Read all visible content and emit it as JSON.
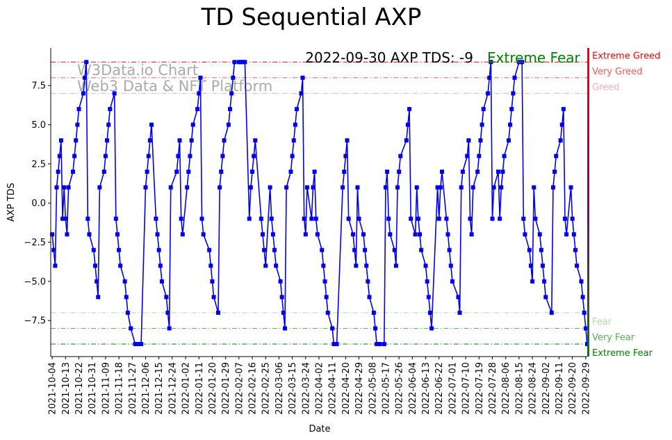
{
  "chart_data": {
    "type": "line",
    "title": "TD Sequential AXP",
    "xlabel": "Date",
    "ylabel": "AXP TDS",
    "ylim": [
      -9.8,
      9.9
    ],
    "xlim": [
      "2021-10-03",
      "2022-09-30"
    ],
    "yticks": [
      -7.5,
      -5.0,
      -2.5,
      0.0,
      2.5,
      5.0,
      7.5
    ],
    "ytick_labels": [
      "−7.5",
      "−5.0",
      "−2.5",
      "0.0",
      "2.5",
      "5.0",
      "7.5"
    ],
    "xticks": [
      "2021-10-04",
      "2021-10-13",
      "2021-10-22",
      "2021-10-31",
      "2021-11-09",
      "2021-11-18",
      "2021-11-27",
      "2021-12-06",
      "2021-12-15",
      "2021-12-24",
      "2022-01-02",
      "2022-01-11",
      "2022-01-20",
      "2022-01-29",
      "2022-02-07",
      "2022-02-16",
      "2022-02-25",
      "2022-03-06",
      "2022-03-15",
      "2022-03-24",
      "2022-04-02",
      "2022-04-11",
      "2022-04-20",
      "2022-04-29",
      "2022-05-08",
      "2022-05-17",
      "2022-05-26",
      "2022-06-04",
      "2022-06-13",
      "2022-06-22",
      "2022-07-01",
      "2022-07-10",
      "2022-07-19",
      "2022-07-28",
      "2022-08-06",
      "2022-08-15",
      "2022-08-24",
      "2022-09-02",
      "2022-09-11",
      "2022-09-20",
      "2022-09-29"
    ],
    "annotation": "2022-09-30 AXP TDS: -9",
    "annotation_status": "Extreme Fear",
    "watermark": [
      "W3Data.io Chart",
      "Web3 Data & NFT Platform"
    ],
    "grid": false,
    "line_color": "#0000ee",
    "reference_lines": [
      {
        "y": 9,
        "label": "Extreme Greed",
        "color": "#ff0000"
      },
      {
        "y": 8,
        "label": "Very Greed",
        "color": "#ff5555"
      },
      {
        "y": 7,
        "label": "Greed",
        "color": "#ffaaaa"
      },
      {
        "y": -7,
        "label": "Fear",
        "color": "#aaddaa"
      },
      {
        "y": -8,
        "label": "Very Fear",
        "color": "#55aa55"
      },
      {
        "y": -9,
        "label": "Extreme Fear",
        "color": "#008000"
      }
    ],
    "series": [
      {
        "values": [
          [
            "2021-10-04",
            -2
          ],
          [
            "2021-10-05",
            -3
          ],
          [
            "2021-10-06",
            -4
          ],
          [
            "2021-10-07",
            1
          ],
          [
            "2021-10-08",
            2
          ],
          [
            "2021-10-09",
            3
          ],
          [
            "2021-10-10",
            4
          ],
          [
            "2021-10-11",
            -1
          ],
          [
            "2021-10-12",
            1
          ],
          [
            "2021-10-13",
            -1
          ],
          [
            "2021-10-14",
            -2
          ],
          [
            "2021-10-15",
            1
          ],
          [
            "2021-10-18",
            2
          ],
          [
            "2021-10-19",
            3
          ],
          [
            "2021-10-20",
            4
          ],
          [
            "2021-10-21",
            5
          ],
          [
            "2021-10-22",
            6
          ],
          [
            "2021-10-25",
            7
          ],
          [
            "2021-10-26",
            8
          ],
          [
            "2021-10-27",
            9
          ],
          [
            "2021-10-28",
            -1
          ],
          [
            "2021-10-29",
            -2
          ],
          [
            "2021-11-01",
            -3
          ],
          [
            "2021-11-02",
            -4
          ],
          [
            "2021-11-03",
            -5
          ],
          [
            "2021-11-04",
            -6
          ],
          [
            "2021-11-05",
            1
          ],
          [
            "2021-11-08",
            2
          ],
          [
            "2021-11-09",
            3
          ],
          [
            "2021-11-10",
            4
          ],
          [
            "2021-11-11",
            5
          ],
          [
            "2021-11-12",
            6
          ],
          [
            "2021-11-15",
            7
          ],
          [
            "2021-11-16",
            -1
          ],
          [
            "2021-11-17",
            -2
          ],
          [
            "2021-11-18",
            -3
          ],
          [
            "2021-11-19",
            -4
          ],
          [
            "2021-11-22",
            -5
          ],
          [
            "2021-11-23",
            -6
          ],
          [
            "2021-11-24",
            -7
          ],
          [
            "2021-11-26",
            -8
          ],
          [
            "2021-11-29",
            -9
          ],
          [
            "2021-11-30",
            -9
          ],
          [
            "2021-12-01",
            -9
          ],
          [
            "2021-12-02",
            -9
          ],
          [
            "2021-12-03",
            -9
          ],
          [
            "2021-12-06",
            1
          ],
          [
            "2021-12-07",
            2
          ],
          [
            "2021-12-08",
            3
          ],
          [
            "2021-12-09",
            4
          ],
          [
            "2021-12-10",
            5
          ],
          [
            "2021-12-13",
            -1
          ],
          [
            "2021-12-14",
            -2
          ],
          [
            "2021-12-15",
            -3
          ],
          [
            "2021-12-16",
            -4
          ],
          [
            "2021-12-17",
            -5
          ],
          [
            "2021-12-20",
            -6
          ],
          [
            "2021-12-21",
            -7
          ],
          [
            "2021-12-22",
            -8
          ],
          [
            "2021-12-23",
            1
          ],
          [
            "2021-12-27",
            2
          ],
          [
            "2021-12-28",
            3
          ],
          [
            "2021-12-29",
            4
          ],
          [
            "2021-12-30",
            -1
          ],
          [
            "2021-12-31",
            -2
          ],
          [
            "2022-01-03",
            1
          ],
          [
            "2022-01-04",
            2
          ],
          [
            "2022-01-05",
            3
          ],
          [
            "2022-01-06",
            4
          ],
          [
            "2022-01-07",
            5
          ],
          [
            "2022-01-10",
            6
          ],
          [
            "2022-01-11",
            7
          ],
          [
            "2022-01-12",
            8
          ],
          [
            "2022-01-13",
            -1
          ],
          [
            "2022-01-14",
            -2
          ],
          [
            "2022-01-18",
            -3
          ],
          [
            "2022-01-19",
            -4
          ],
          [
            "2022-01-20",
            -5
          ],
          [
            "2022-01-21",
            -6
          ],
          [
            "2022-01-24",
            -7
          ],
          [
            "2022-01-25",
            1
          ],
          [
            "2022-01-26",
            2
          ],
          [
            "2022-01-27",
            3
          ],
          [
            "2022-01-28",
            4
          ],
          [
            "2022-01-31",
            5
          ],
          [
            "2022-02-01",
            6
          ],
          [
            "2022-02-02",
            7
          ],
          [
            "2022-02-03",
            8
          ],
          [
            "2022-02-04",
            9
          ],
          [
            "2022-02-07",
            9
          ],
          [
            "2022-02-08",
            9
          ],
          [
            "2022-02-09",
            9
          ],
          [
            "2022-02-10",
            9
          ],
          [
            "2022-02-11",
            9
          ],
          [
            "2022-02-14",
            -1
          ],
          [
            "2022-02-15",
            1
          ],
          [
            "2022-02-16",
            2
          ],
          [
            "2022-02-17",
            3
          ],
          [
            "2022-02-18",
            4
          ],
          [
            "2022-02-22",
            -1
          ],
          [
            "2022-02-23",
            -2
          ],
          [
            "2022-02-24",
            -3
          ],
          [
            "2022-02-25",
            -4
          ],
          [
            "2022-02-28",
            1
          ],
          [
            "2022-03-01",
            -1
          ],
          [
            "2022-03-02",
            -2
          ],
          [
            "2022-03-03",
            -3
          ],
          [
            "2022-03-04",
            -4
          ],
          [
            "2022-03-07",
            -5
          ],
          [
            "2022-03-08",
            -6
          ],
          [
            "2022-03-09",
            -7
          ],
          [
            "2022-03-10",
            -8
          ],
          [
            "2022-03-11",
            1
          ],
          [
            "2022-03-14",
            2
          ],
          [
            "2022-03-15",
            3
          ],
          [
            "2022-03-16",
            4
          ],
          [
            "2022-03-17",
            5
          ],
          [
            "2022-03-18",
            6
          ],
          [
            "2022-03-21",
            7
          ],
          [
            "2022-03-22",
            8
          ],
          [
            "2022-03-23",
            -1
          ],
          [
            "2022-03-24",
            -2
          ],
          [
            "2022-03-25",
            1
          ],
          [
            "2022-03-28",
            -1
          ],
          [
            "2022-03-29",
            1
          ],
          [
            "2022-03-30",
            2
          ],
          [
            "2022-03-31",
            -1
          ],
          [
            "2022-04-01",
            -2
          ],
          [
            "2022-04-04",
            -3
          ],
          [
            "2022-04-05",
            -4
          ],
          [
            "2022-04-06",
            -5
          ],
          [
            "2022-04-07",
            -6
          ],
          [
            "2022-04-08",
            -7
          ],
          [
            "2022-04-11",
            -8
          ],
          [
            "2022-04-12",
            -9
          ],
          [
            "2022-04-13",
            -9
          ],
          [
            "2022-04-14",
            -9
          ],
          [
            "2022-04-18",
            1
          ],
          [
            "2022-04-19",
            2
          ],
          [
            "2022-04-20",
            3
          ],
          [
            "2022-04-21",
            4
          ],
          [
            "2022-04-22",
            -1
          ],
          [
            "2022-04-25",
            -2
          ],
          [
            "2022-04-26",
            -3
          ],
          [
            "2022-04-27",
            -4
          ],
          [
            "2022-04-28",
            1
          ],
          [
            "2022-04-29",
            -1
          ],
          [
            "2022-05-02",
            -2
          ],
          [
            "2022-05-03",
            -3
          ],
          [
            "2022-05-04",
            -4
          ],
          [
            "2022-05-05",
            -5
          ],
          [
            "2022-05-06",
            -6
          ],
          [
            "2022-05-09",
            -7
          ],
          [
            "2022-05-10",
            -8
          ],
          [
            "2022-05-11",
            -9
          ],
          [
            "2022-05-12",
            -9
          ],
          [
            "2022-05-13",
            -9
          ],
          [
            "2022-05-16",
            -9
          ],
          [
            "2022-05-17",
            1
          ],
          [
            "2022-05-18",
            2
          ],
          [
            "2022-05-19",
            -1
          ],
          [
            "2022-05-20",
            -2
          ],
          [
            "2022-05-23",
            -3
          ],
          [
            "2022-05-24",
            -4
          ],
          [
            "2022-05-25",
            1
          ],
          [
            "2022-05-26",
            2
          ],
          [
            "2022-05-27",
            3
          ],
          [
            "2022-05-31",
            4
          ],
          [
            "2022-06-01",
            5
          ],
          [
            "2022-06-02",
            6
          ],
          [
            "2022-06-03",
            -1
          ],
          [
            "2022-06-06",
            -2
          ],
          [
            "2022-06-07",
            1
          ],
          [
            "2022-06-08",
            -1
          ],
          [
            "2022-06-09",
            -2
          ],
          [
            "2022-06-10",
            -3
          ],
          [
            "2022-06-13",
            -4
          ],
          [
            "2022-06-14",
            -5
          ],
          [
            "2022-06-15",
            -6
          ],
          [
            "2022-06-16",
            -7
          ],
          [
            "2022-06-17",
            -8
          ],
          [
            "2022-06-21",
            1
          ],
          [
            "2022-06-22",
            -1
          ],
          [
            "2022-06-23",
            1
          ],
          [
            "2022-06-24",
            2
          ],
          [
            "2022-06-27",
            -1
          ],
          [
            "2022-06-28",
            -2
          ],
          [
            "2022-06-29",
            -3
          ],
          [
            "2022-06-30",
            -4
          ],
          [
            "2022-07-01",
            -5
          ],
          [
            "2022-07-05",
            -6
          ],
          [
            "2022-07-06",
            -7
          ],
          [
            "2022-07-07",
            1
          ],
          [
            "2022-07-08",
            2
          ],
          [
            "2022-07-11",
            3
          ],
          [
            "2022-07-12",
            4
          ],
          [
            "2022-07-13",
            -1
          ],
          [
            "2022-07-14",
            -2
          ],
          [
            "2022-07-15",
            1
          ],
          [
            "2022-07-18",
            2
          ],
          [
            "2022-07-19",
            3
          ],
          [
            "2022-07-20",
            4
          ],
          [
            "2022-07-21",
            5
          ],
          [
            "2022-07-22",
            6
          ],
          [
            "2022-07-25",
            7
          ],
          [
            "2022-07-26",
            8
          ],
          [
            "2022-07-27",
            9
          ],
          [
            "2022-07-28",
            -1
          ],
          [
            "2022-07-29",
            1
          ],
          [
            "2022-08-01",
            2
          ],
          [
            "2022-08-02",
            -1
          ],
          [
            "2022-08-03",
            1
          ],
          [
            "2022-08-04",
            2
          ],
          [
            "2022-08-05",
            3
          ],
          [
            "2022-08-08",
            4
          ],
          [
            "2022-08-09",
            5
          ],
          [
            "2022-08-10",
            6
          ],
          [
            "2022-08-11",
            7
          ],
          [
            "2022-08-12",
            8
          ],
          [
            "2022-08-15",
            9
          ],
          [
            "2022-08-16",
            9
          ],
          [
            "2022-08-17",
            9
          ],
          [
            "2022-08-18",
            -1
          ],
          [
            "2022-08-19",
            -2
          ],
          [
            "2022-08-22",
            -3
          ],
          [
            "2022-08-23",
            -4
          ],
          [
            "2022-08-24",
            -5
          ],
          [
            "2022-08-25",
            1
          ],
          [
            "2022-08-26",
            -1
          ],
          [
            "2022-08-29",
            -2
          ],
          [
            "2022-08-30",
            -3
          ],
          [
            "2022-08-31",
            -4
          ],
          [
            "2022-09-01",
            -5
          ],
          [
            "2022-09-02",
            -6
          ],
          [
            "2022-09-06",
            -7
          ],
          [
            "2022-09-07",
            1
          ],
          [
            "2022-09-08",
            2
          ],
          [
            "2022-09-09",
            3
          ],
          [
            "2022-09-12",
            4
          ],
          [
            "2022-09-13",
            5
          ],
          [
            "2022-09-14",
            6
          ],
          [
            "2022-09-15",
            -1
          ],
          [
            "2022-09-16",
            -2
          ],
          [
            "2022-09-19",
            1
          ],
          [
            "2022-09-20",
            -1
          ],
          [
            "2022-09-21",
            -2
          ],
          [
            "2022-09-22",
            -3
          ],
          [
            "2022-09-23",
            -4
          ],
          [
            "2022-09-26",
            -5
          ],
          [
            "2022-09-27",
            -6
          ],
          [
            "2022-09-28",
            -7
          ],
          [
            "2022-09-29",
            -8
          ],
          [
            "2022-09-30",
            -9
          ]
        ]
      }
    ],
    "colors": {
      "annotation_status": "#008000",
      "sidebar_gradient_top": "#ff0000",
      "sidebar_gradient_bottom": "#008000"
    }
  }
}
